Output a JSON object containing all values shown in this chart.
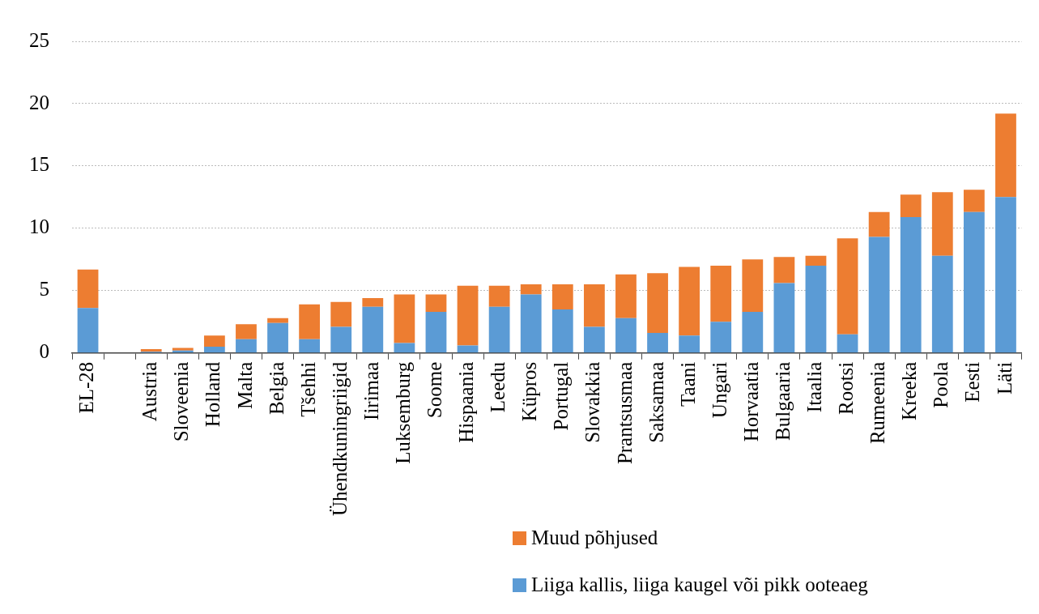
{
  "chart_data": {
    "type": "bar",
    "stacked": true,
    "categories": [
      "EL-28",
      null,
      "Austria",
      "Sloveenia",
      "Holland",
      "Malta",
      "Belgia",
      "Tšehhi",
      "Ühendkuningriigid",
      "Iirimaa",
      "Luksemburg",
      "Soome",
      "Hispaania",
      "Leedu",
      "Küpros",
      "Portugal",
      "Slovakkia",
      "Prantsusmaa",
      "Saksamaa",
      "Taani",
      "Ungari",
      "Horvaatia",
      "Bulgaaria",
      "Itaalia",
      "Rootsi",
      "Rumeenia",
      "Kreeka",
      "Poola",
      "Eesti",
      "Läti"
    ],
    "series": [
      {
        "name": "Liiga kallis, liiga kaugel või pikk ooteaeg",
        "color": "#5b9bd5",
        "values": [
          3.6,
          null,
          0.1,
          0.2,
          0.5,
          1.1,
          2.4,
          1.1,
          2.1,
          3.7,
          0.8,
          3.3,
          0.6,
          3.7,
          4.7,
          3.5,
          2.1,
          2.8,
          1.6,
          1.4,
          2.5,
          3.3,
          5.6,
          7.0,
          1.5,
          9.3,
          10.9,
          7.8,
          11.3,
          12.5
        ]
      },
      {
        "name": "Muud põhjused",
        "color": "#ed7d31",
        "values": [
          3.1,
          null,
          0.2,
          0.2,
          0.9,
          1.2,
          0.4,
          2.8,
          2.0,
          0.7,
          3.9,
          1.4,
          4.8,
          1.7,
          0.8,
          2.0,
          3.4,
          3.5,
          4.8,
          5.5,
          4.5,
          4.2,
          2.1,
          0.8,
          7.7,
          2.0,
          1.8,
          5.1,
          1.8,
          6.7
        ]
      }
    ],
    "ylim": [
      0,
      25
    ],
    "yticks": [
      0,
      5,
      10,
      15,
      20,
      25
    ],
    "grid": "y",
    "legend": "bottom"
  }
}
